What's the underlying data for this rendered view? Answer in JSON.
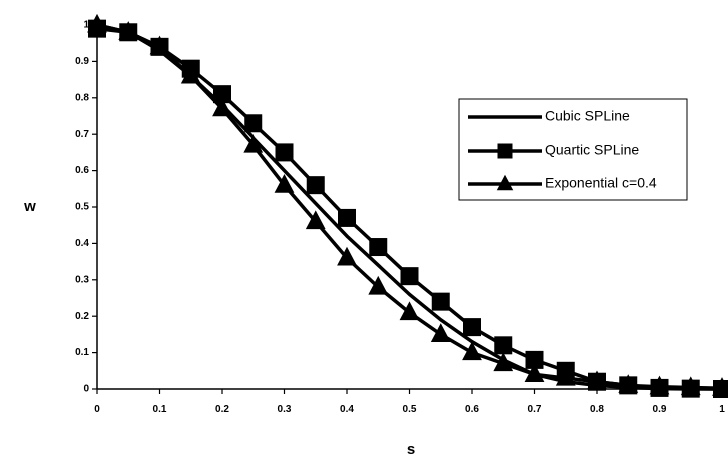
{
  "chart_data": {
    "type": "line",
    "title": "",
    "xlabel": "s",
    "ylabel": "w",
    "xlim": [
      0,
      1
    ],
    "ylim": [
      0,
      1
    ],
    "x_ticks": [
      "0",
      "0.1",
      "0.2",
      "0.3",
      "0.4",
      "0.5",
      "0.6",
      "0.7",
      "0.8",
      "0.9",
      "1"
    ],
    "y_ticks": [
      "0",
      "0.1",
      "0.2",
      "0.3",
      "0.4",
      "0.5",
      "0.6",
      "0.7",
      "0.8",
      "0.9",
      "1"
    ],
    "grid": false,
    "legend_position": "right",
    "x": [
      0,
      0.05,
      0.1,
      0.15,
      0.2,
      0.25,
      0.3,
      0.35,
      0.4,
      0.45,
      0.5,
      0.55,
      0.6,
      0.65,
      0.7,
      0.75,
      0.8,
      0.85,
      0.9,
      0.95,
      1
    ],
    "series": [
      {
        "name": "Cubic SPLine",
        "marker": "none",
        "color": "#000000",
        "values": [
          1,
          0.98,
          0.93,
          0.86,
          0.78,
          0.69,
          0.6,
          0.51,
          0.42,
          0.34,
          0.26,
          0.19,
          0.13,
          0.08,
          0.04,
          0.02,
          0.01,
          0.004,
          0.001,
          0,
          0
        ]
      },
      {
        "name": "Quartic SPLine",
        "marker": "square",
        "color": "#000000",
        "values": [
          0.99,
          0.98,
          0.94,
          0.88,
          0.81,
          0.73,
          0.65,
          0.56,
          0.47,
          0.39,
          0.31,
          0.24,
          0.17,
          0.12,
          0.08,
          0.05,
          0.02,
          0.01,
          0.003,
          0.001,
          0
        ]
      },
      {
        "name": "Exponential c=0.4",
        "marker": "triangle",
        "color": "#000000",
        "values": [
          1,
          0.98,
          0.94,
          0.86,
          0.77,
          0.67,
          0.56,
          0.46,
          0.36,
          0.28,
          0.21,
          0.15,
          0.1,
          0.07,
          0.04,
          0.03,
          0.02,
          0.01,
          0.006,
          0.004,
          0.002
        ]
      }
    ]
  }
}
